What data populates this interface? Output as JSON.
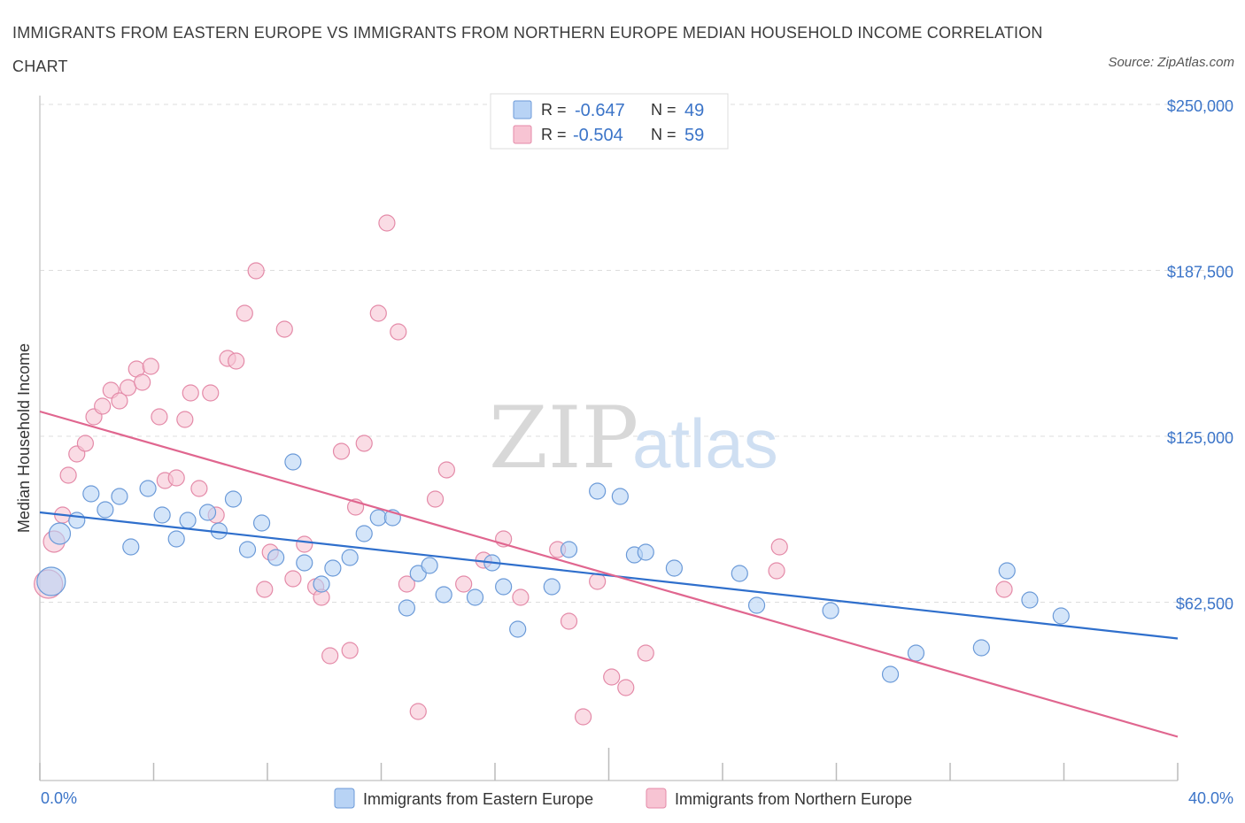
{
  "title": "IMMIGRANTS FROM EASTERN EUROPE VS IMMIGRANTS FROM NORTHERN EUROPE MEDIAN HOUSEHOLD INCOME CORRELATION CHART",
  "source": "Source: ZipAtlas.com",
  "watermark": {
    "zip": "ZIP",
    "atlas": "atlas"
  },
  "colors": {
    "eastern_fill": "#b8d3f5",
    "eastern_stroke": "#6b9ad8",
    "eastern_line": "#2f6fcc",
    "northern_fill": "#f7c4d3",
    "northern_stroke": "#e48aa8",
    "northern_line": "#e0668f",
    "grid": "#dddddd",
    "axis_label": "#3b74c8"
  },
  "legend": {
    "rows": [
      {
        "r_label": "R = ",
        "r_value": "-0.647",
        "n_label": "N = ",
        "n_value": "49"
      },
      {
        "r_label": "R = ",
        "r_value": "-0.504",
        "n_label": "N = ",
        "n_value": "59"
      }
    ]
  },
  "chart_data": {
    "type": "scatter",
    "ylabel": "Median Household Income",
    "x_tick_labels": [
      "0.0%",
      "40.0%"
    ],
    "y_tick_labels": [
      "$62,500",
      "$125,000",
      "$187,500",
      "$250,000"
    ],
    "y_ticks": [
      62500,
      125000,
      187500,
      250000
    ],
    "xlim": [
      0,
      40
    ],
    "ylim": [
      0,
      250000
    ],
    "legend_position": "bottom",
    "grid": true,
    "series": [
      {
        "name": "Immigrants from Eastern Europe",
        "trend": {
          "x": [
            0,
            40
          ],
          "y": [
            101000,
            53500
          ]
        },
        "points": [
          {
            "x": 0.4,
            "y": 75000,
            "r": 16
          },
          {
            "x": 0.7,
            "y": 93000,
            "r": 12
          },
          {
            "x": 1.3,
            "y": 98000
          },
          {
            "x": 1.8,
            "y": 108000
          },
          {
            "x": 2.3,
            "y": 102000
          },
          {
            "x": 2.8,
            "y": 107000
          },
          {
            "x": 3.2,
            "y": 88000
          },
          {
            "x": 3.8,
            "y": 110000
          },
          {
            "x": 4.3,
            "y": 100000
          },
          {
            "x": 4.8,
            "y": 91000
          },
          {
            "x": 5.2,
            "y": 98000
          },
          {
            "x": 5.9,
            "y": 101000
          },
          {
            "x": 6.3,
            "y": 94000
          },
          {
            "x": 6.8,
            "y": 106000
          },
          {
            "x": 7.3,
            "y": 87000
          },
          {
            "x": 7.8,
            "y": 97000
          },
          {
            "x": 8.3,
            "y": 84000
          },
          {
            "x": 8.9,
            "y": 120000
          },
          {
            "x": 9.3,
            "y": 82000
          },
          {
            "x": 9.9,
            "y": 74000
          },
          {
            "x": 10.3,
            "y": 80000
          },
          {
            "x": 10.9,
            "y": 84000
          },
          {
            "x": 11.4,
            "y": 93000
          },
          {
            "x": 11.9,
            "y": 99000
          },
          {
            "x": 12.4,
            "y": 99000
          },
          {
            "x": 12.9,
            "y": 65000
          },
          {
            "x": 13.3,
            "y": 78000
          },
          {
            "x": 13.7,
            "y": 81000
          },
          {
            "x": 14.2,
            "y": 70000
          },
          {
            "x": 15.3,
            "y": 69000
          },
          {
            "x": 15.9,
            "y": 82000
          },
          {
            "x": 16.3,
            "y": 73000
          },
          {
            "x": 16.8,
            "y": 57000
          },
          {
            "x": 18.0,
            "y": 73000
          },
          {
            "x": 18.6,
            "y": 87000
          },
          {
            "x": 19.6,
            "y": 109000
          },
          {
            "x": 20.4,
            "y": 107000
          },
          {
            "x": 20.9,
            "y": 85000
          },
          {
            "x": 21.3,
            "y": 86000
          },
          {
            "x": 22.3,
            "y": 80000
          },
          {
            "x": 24.6,
            "y": 78000
          },
          {
            "x": 25.2,
            "y": 66000
          },
          {
            "x": 27.8,
            "y": 64000
          },
          {
            "x": 29.9,
            "y": 40000
          },
          {
            "x": 30.8,
            "y": 48000
          },
          {
            "x": 33.1,
            "y": 50000
          },
          {
            "x": 34.0,
            "y": 79000
          },
          {
            "x": 34.8,
            "y": 68000
          },
          {
            "x": 35.9,
            "y": 62000
          }
        ]
      },
      {
        "name": "Immigrants from Northern Europe",
        "trend": {
          "x": [
            0,
            40
          ],
          "y": [
            139000,
            16500
          ]
        },
        "points": [
          {
            "x": 0.3,
            "y": 74000,
            "r": 16
          },
          {
            "x": 0.5,
            "y": 90000,
            "r": 12
          },
          {
            "x": 0.8,
            "y": 100000
          },
          {
            "x": 1.0,
            "y": 115000
          },
          {
            "x": 1.3,
            "y": 123000
          },
          {
            "x": 1.6,
            "y": 127000
          },
          {
            "x": 1.9,
            "y": 137000
          },
          {
            "x": 2.2,
            "y": 141000
          },
          {
            "x": 2.5,
            "y": 147000
          },
          {
            "x": 2.8,
            "y": 143000
          },
          {
            "x": 3.1,
            "y": 148000
          },
          {
            "x": 3.4,
            "y": 155000
          },
          {
            "x": 3.6,
            "y": 150000
          },
          {
            "x": 3.9,
            "y": 156000
          },
          {
            "x": 4.2,
            "y": 137000
          },
          {
            "x": 4.4,
            "y": 113000
          },
          {
            "x": 4.8,
            "y": 114000
          },
          {
            "x": 5.1,
            "y": 136000
          },
          {
            "x": 5.3,
            "y": 146000
          },
          {
            "x": 5.6,
            "y": 110000
          },
          {
            "x": 6.0,
            "y": 146000
          },
          {
            "x": 6.2,
            "y": 100000
          },
          {
            "x": 6.6,
            "y": 159000
          },
          {
            "x": 6.9,
            "y": 158000
          },
          {
            "x": 7.2,
            "y": 176000
          },
          {
            "x": 7.6,
            "y": 192000
          },
          {
            "x": 7.9,
            "y": 72000
          },
          {
            "x": 8.1,
            "y": 86000
          },
          {
            "x": 8.6,
            "y": 170000
          },
          {
            "x": 8.9,
            "y": 76000
          },
          {
            "x": 9.3,
            "y": 89000
          },
          {
            "x": 9.7,
            "y": 73000
          },
          {
            "x": 9.9,
            "y": 69000
          },
          {
            "x": 10.2,
            "y": 47000
          },
          {
            "x": 10.6,
            "y": 124000
          },
          {
            "x": 10.9,
            "y": 49000
          },
          {
            "x": 11.1,
            "y": 103000
          },
          {
            "x": 11.4,
            "y": 127000
          },
          {
            "x": 11.9,
            "y": 176000
          },
          {
            "x": 12.2,
            "y": 210000
          },
          {
            "x": 12.6,
            "y": 169000
          },
          {
            "x": 12.9,
            "y": 74000
          },
          {
            "x": 13.3,
            "y": 26000
          },
          {
            "x": 13.9,
            "y": 106000
          },
          {
            "x": 14.3,
            "y": 117000
          },
          {
            "x": 14.9,
            "y": 74000
          },
          {
            "x": 15.6,
            "y": 83000
          },
          {
            "x": 16.3,
            "y": 91000
          },
          {
            "x": 16.9,
            "y": 69000
          },
          {
            "x": 18.2,
            "y": 87000
          },
          {
            "x": 18.6,
            "y": 60000
          },
          {
            "x": 19.1,
            "y": 24000
          },
          {
            "x": 19.6,
            "y": 75000
          },
          {
            "x": 20.1,
            "y": 39000
          },
          {
            "x": 20.6,
            "y": 35000
          },
          {
            "x": 21.3,
            "y": 48000
          },
          {
            "x": 25.9,
            "y": 79000
          },
          {
            "x": 26.0,
            "y": 88000
          },
          {
            "x": 33.9,
            "y": 72000
          }
        ]
      }
    ]
  }
}
